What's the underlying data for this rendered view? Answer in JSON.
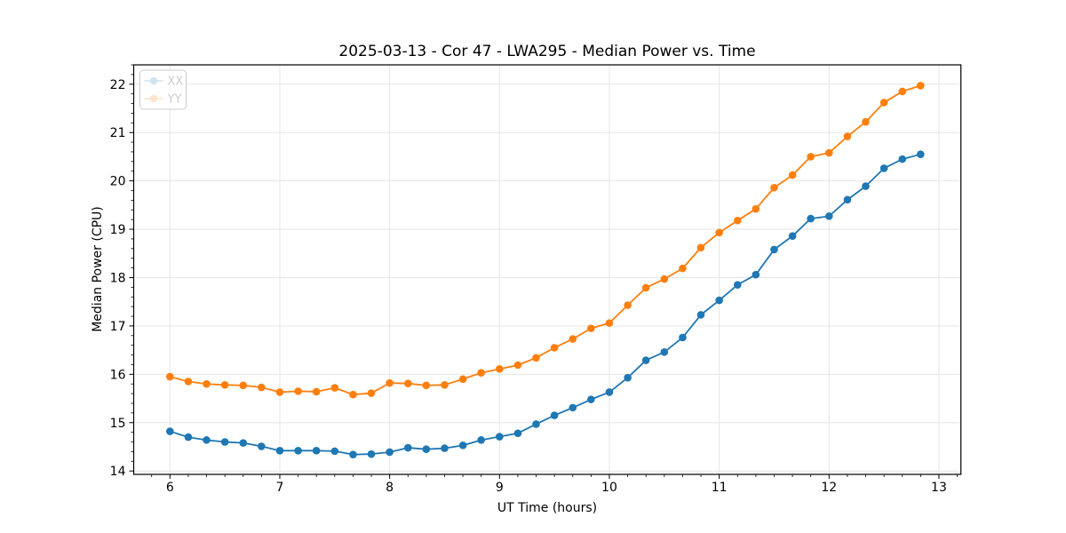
{
  "figure": {
    "title": "2025-03-13 - Cor 47 - LWA295 - Median Power vs. Time",
    "xlabel": "UT Time (hours)",
    "ylabel": "Median Power (CPU)"
  },
  "legend": {
    "entries": [
      {
        "label": "XX",
        "color": "#1f77b4"
      },
      {
        "label": "YY",
        "color": "#ff7f0e"
      }
    ],
    "position": "upper-left"
  },
  "chart_data": {
    "type": "line",
    "title": "2025-03-13 - Cor 47 - LWA295 - Median Power vs. Time",
    "xlabel": "UT Time (hours)",
    "ylabel": "Median Power (CPU)",
    "xlim": [
      5.67,
      13.2
    ],
    "ylim": [
      13.93,
      22.4
    ],
    "x_ticks": [
      6,
      7,
      8,
      9,
      10,
      11,
      12,
      13
    ],
    "y_ticks": [
      14,
      15,
      16,
      17,
      18,
      19,
      20,
      21,
      22
    ],
    "x_minor_step": 0.166667,
    "y_minor_step": 0.2,
    "grid": true,
    "grid_color": "#e6e6e6",
    "legend_position": "upper-left",
    "x": [
      6.0,
      6.167,
      6.333,
      6.5,
      6.667,
      6.833,
      7.0,
      7.167,
      7.333,
      7.5,
      7.667,
      7.833,
      8.0,
      8.167,
      8.333,
      8.5,
      8.667,
      8.833,
      9.0,
      9.167,
      9.333,
      9.5,
      9.667,
      9.833,
      10.0,
      10.167,
      10.333,
      10.5,
      10.667,
      10.833,
      11.0,
      11.167,
      11.333,
      11.5,
      11.667,
      11.833,
      12.0,
      12.167,
      12.333,
      12.5,
      12.667,
      12.833
    ],
    "series": [
      {
        "name": "XX",
        "color": "#1f77b4",
        "values": [
          14.82,
          14.7,
          14.64,
          14.6,
          14.58,
          14.51,
          14.42,
          14.42,
          14.42,
          14.41,
          14.34,
          14.35,
          14.39,
          14.48,
          14.45,
          14.47,
          14.53,
          14.64,
          14.71,
          14.78,
          14.97,
          15.15,
          15.31,
          15.48,
          15.63,
          15.93,
          16.29,
          16.46,
          16.76,
          17.23,
          17.53,
          17.85,
          18.06,
          18.58,
          18.86,
          19.22,
          19.27,
          19.61,
          19.89,
          20.26,
          20.45,
          20.55
        ]
      },
      {
        "name": "YY",
        "color": "#ff7f0e",
        "values": [
          15.95,
          15.85,
          15.8,
          15.78,
          15.77,
          15.73,
          15.63,
          15.65,
          15.64,
          15.72,
          15.58,
          15.61,
          15.82,
          15.81,
          15.77,
          15.78,
          15.9,
          16.03,
          16.11,
          16.19,
          16.34,
          16.55,
          16.73,
          16.95,
          17.06,
          17.43,
          17.79,
          17.97,
          18.19,
          18.62,
          18.93,
          19.18,
          19.42,
          19.86,
          20.12,
          20.5,
          20.58,
          20.92,
          21.22,
          21.62,
          21.85,
          21.97
        ]
      }
    ]
  }
}
